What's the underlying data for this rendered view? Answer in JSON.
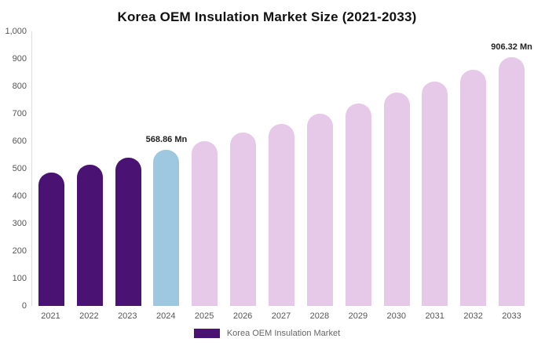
{
  "title": "Korea OEM Insulation Market Size (2021-2033)",
  "chart_data": {
    "type": "bar",
    "title": "Korea OEM Insulation Market Size (2021-2033)",
    "categories": [
      "2021",
      "2022",
      "2023",
      "2024",
      "2025",
      "2026",
      "2027",
      "2028",
      "2029",
      "2030",
      "2031",
      "2032",
      "2033"
    ],
    "values": [
      487,
      513,
      540,
      568.86,
      599,
      631,
      664,
      700,
      737,
      776,
      817,
      860,
      906.32
    ],
    "bar_colors": [
      "#4a1272",
      "#4a1272",
      "#4a1272",
      "#9ec7e0",
      "#e6c9e8",
      "#e6c9e8",
      "#e6c9e8",
      "#e6c9e8",
      "#e6c9e8",
      "#e6c9e8",
      "#e6c9e8",
      "#e6c9e8",
      "#e6c9e8"
    ],
    "ylim": [
      0,
      1000
    ],
    "yticks": [
      {
        "value": 0,
        "label": "0"
      },
      {
        "value": 100,
        "label": "100"
      },
      {
        "value": 200,
        "label": "200"
      },
      {
        "value": 300,
        "label": "300"
      },
      {
        "value": 400,
        "label": "400"
      },
      {
        "value": 500,
        "label": "500"
      },
      {
        "value": 600,
        "label": "600"
      },
      {
        "value": 700,
        "label": "700"
      },
      {
        "value": 800,
        "label": "800"
      },
      {
        "value": 900,
        "label": "900"
      },
      {
        "value": 1000,
        "label": "1,000"
      }
    ],
    "annotations": [
      {
        "index": 3,
        "text": "568.86 Mn"
      },
      {
        "index": 12,
        "text": "906.32 Mn"
      }
    ],
    "grid": false,
    "legend_position": "bottom",
    "legend": [
      {
        "label": "Korea OEM Insulation Market",
        "color": "#4a1272"
      }
    ]
  }
}
